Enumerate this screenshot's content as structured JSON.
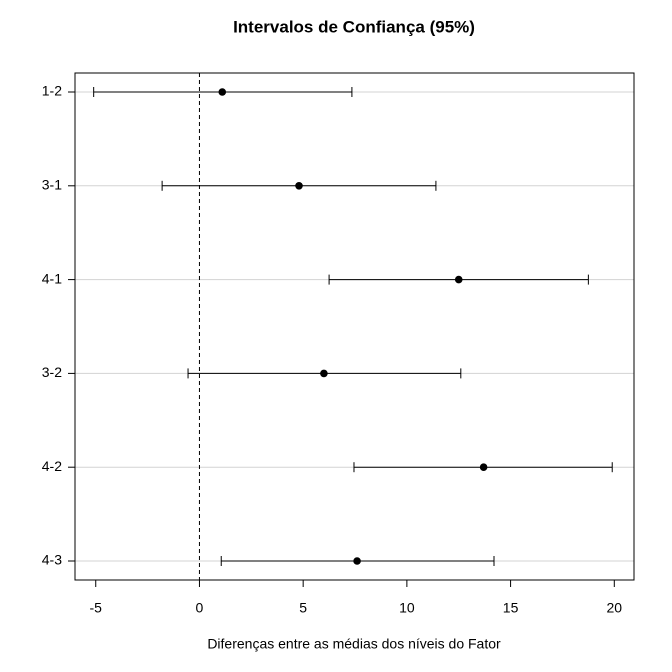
{
  "chart_data": {
    "type": "interval",
    "title": "Intervalos de Confiança (95%)",
    "x_label": "Diferenças entre as médias dos níveis do Fator",
    "categories": [
      "1-2",
      "3-1",
      "4-1",
      "3-2",
      "4-2",
      "4-3"
    ],
    "values": [
      1.1,
      4.8,
      12.5,
      6.0,
      13.7,
      7.6
    ],
    "lower": [
      -5.1,
      -1.8,
      6.25,
      -0.55,
      7.45,
      1.05
    ],
    "upper": [
      7.35,
      11.4,
      18.75,
      12.6,
      19.9,
      14.2
    ],
    "xlim": [
      -6,
      20.95
    ],
    "xticks": [
      -5,
      0,
      5,
      10,
      15,
      20
    ],
    "reference_line": 0,
    "grid": true,
    "color": "#000000"
  }
}
